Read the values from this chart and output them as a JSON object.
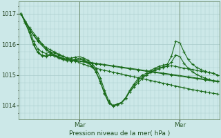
{
  "background_color": "#cce8e8",
  "grid_color": "#aacccc",
  "line_color": "#1a6b1a",
  "marker_color": "#1a6b1a",
  "xlabel_text": "Pression niveau de la mer( hPa )",
  "yticks": [
    1014,
    1015,
    1016,
    1017
  ],
  "ylim": [
    1013.55,
    1017.4
  ],
  "xlim": [
    -0.5,
    47.5
  ],
  "mar_x": 14,
  "mer_x": 38,
  "series": [
    {
      "x": [
        0,
        1,
        2,
        3,
        4,
        5,
        6,
        7,
        8,
        9,
        10,
        11,
        12,
        13,
        14,
        15,
        16,
        17,
        18,
        19,
        20,
        21,
        22,
        23,
        24,
        25,
        26,
        27,
        28,
        29,
        30,
        31,
        32,
        33,
        34,
        35,
        36,
        37,
        38,
        39,
        40,
        41,
        42,
        43,
        44,
        45,
        46,
        47
      ],
      "y": [
        1017.0,
        1016.75,
        1016.5,
        1016.3,
        1016.15,
        1016.0,
        1015.9,
        1015.82,
        1015.75,
        1015.68,
        1015.62,
        1015.56,
        1015.5,
        1015.45,
        1015.4,
        1015.35,
        1015.3,
        1015.26,
        1015.22,
        1015.18,
        1015.15,
        1015.12,
        1015.09,
        1015.06,
        1015.03,
        1015.0,
        1014.97,
        1014.94,
        1014.91,
        1014.88,
        1014.85,
        1014.82,
        1014.79,
        1014.76,
        1014.73,
        1014.7,
        1014.67,
        1014.64,
        1014.61,
        1014.58,
        1014.55,
        1014.52,
        1014.5,
        1014.47,
        1014.45,
        1014.42,
        1014.4,
        1014.38
      ]
    },
    {
      "x": [
        0,
        2,
        4,
        6,
        7,
        8,
        9,
        10,
        11,
        12,
        13,
        14,
        15,
        16,
        17,
        18,
        19,
        20,
        22,
        24,
        26,
        28,
        30,
        32,
        34,
        36,
        38,
        40,
        42,
        44,
        46,
        47
      ],
      "y": [
        1017.0,
        1016.55,
        1016.2,
        1015.85,
        1015.75,
        1015.65,
        1015.6,
        1015.55,
        1015.52,
        1015.5,
        1015.48,
        1015.46,
        1015.44,
        1015.42,
        1015.4,
        1015.38,
        1015.36,
        1015.34,
        1015.3,
        1015.26,
        1015.22,
        1015.18,
        1015.14,
        1015.1,
        1015.06,
        1015.02,
        1014.98,
        1014.94,
        1014.9,
        1014.86,
        1014.82,
        1014.8
      ]
    },
    {
      "x": [
        0,
        2,
        4,
        6,
        7,
        8,
        9,
        10,
        11,
        12,
        13,
        14,
        16,
        18,
        20,
        22,
        24,
        26,
        28,
        30,
        32,
        34,
        36,
        38,
        40,
        42,
        44,
        46,
        47
      ],
      "y": [
        1017.0,
        1016.5,
        1016.1,
        1015.82,
        1015.72,
        1015.62,
        1015.57,
        1015.52,
        1015.5,
        1015.48,
        1015.46,
        1015.44,
        1015.4,
        1015.36,
        1015.32,
        1015.28,
        1015.24,
        1015.2,
        1015.16,
        1015.12,
        1015.08,
        1015.04,
        1015.0,
        1014.96,
        1014.92,
        1014.88,
        1014.84,
        1014.8,
        1014.78
      ]
    },
    {
      "x": [
        0,
        1,
        2,
        3,
        4,
        5,
        6,
        7,
        8,
        9,
        10,
        11,
        12,
        13,
        14,
        15,
        16,
        17,
        18,
        19,
        20,
        21,
        22,
        23,
        24,
        25,
        26,
        27,
        28,
        29,
        30,
        31,
        32,
        33,
        34,
        35,
        36,
        37,
        38,
        39,
        40,
        41,
        42,
        43,
        44,
        45,
        46,
        47
      ],
      "y": [
        1017.0,
        1016.75,
        1016.5,
        1016.1,
        1015.85,
        1015.75,
        1015.7,
        1015.75,
        1015.72,
        1015.65,
        1015.6,
        1015.56,
        1015.55,
        1015.58,
        1015.6,
        1015.55,
        1015.48,
        1015.38,
        1015.2,
        1014.9,
        1014.5,
        1014.15,
        1014.0,
        1014.05,
        1014.1,
        1014.25,
        1014.45,
        1014.6,
        1014.75,
        1014.88,
        1015.0,
        1015.08,
        1015.15,
        1015.2,
        1015.25,
        1015.28,
        1015.3,
        1015.28,
        1015.25,
        1015.22,
        1015.2,
        1015.18,
        1015.15,
        1015.12,
        1015.1,
        1015.08,
        1015.05,
        1015.0
      ]
    },
    {
      "x": [
        0,
        1,
        2,
        3,
        4,
        5,
        6,
        7,
        8,
        9,
        10,
        11,
        12,
        13,
        14,
        15,
        16,
        17,
        18,
        19,
        20,
        21,
        22,
        23,
        24,
        25,
        26,
        27,
        28,
        29,
        30,
        31,
        32,
        33,
        34,
        35,
        36,
        37,
        38,
        39,
        40,
        41,
        42,
        43,
        44,
        45,
        46,
        47
      ],
      "y": [
        1017.0,
        1016.7,
        1016.4,
        1016.0,
        1015.75,
        1015.65,
        1015.62,
        1015.68,
        1015.65,
        1015.58,
        1015.52,
        1015.5,
        1015.48,
        1015.52,
        1015.55,
        1015.5,
        1015.42,
        1015.3,
        1015.1,
        1014.78,
        1014.4,
        1014.1,
        1014.0,
        1014.05,
        1014.1,
        1014.25,
        1014.5,
        1014.7,
        1014.88,
        1015.0,
        1015.05,
        1015.15,
        1015.22,
        1015.28,
        1015.32,
        1015.35,
        1015.62,
        1016.1,
        1016.05,
        1015.75,
        1015.5,
        1015.35,
        1015.25,
        1015.18,
        1015.12,
        1015.08,
        1015.05,
        1015.0
      ]
    },
    {
      "x": [
        0,
        1,
        2,
        3,
        4,
        5,
        6,
        7,
        8,
        9,
        10,
        11,
        12,
        13,
        14,
        15,
        16,
        17,
        18,
        19,
        20,
        21,
        22,
        23,
        24,
        25,
        26,
        27,
        28,
        29,
        30,
        31,
        32,
        33,
        34,
        35,
        36,
        37,
        38,
        39,
        40,
        41,
        42,
        43,
        44,
        45,
        46,
        47
      ],
      "y": [
        1017.0,
        1016.7,
        1016.38,
        1015.98,
        1015.73,
        1015.62,
        1015.6,
        1015.65,
        1015.62,
        1015.55,
        1015.5,
        1015.47,
        1015.45,
        1015.48,
        1015.52,
        1015.47,
        1015.4,
        1015.28,
        1015.08,
        1014.75,
        1014.38,
        1014.08,
        1013.98,
        1014.02,
        1014.08,
        1014.22,
        1014.45,
        1014.65,
        1014.82,
        1014.95,
        1015.0,
        1015.1,
        1015.18,
        1015.23,
        1015.27,
        1015.3,
        1015.42,
        1015.65,
        1015.6,
        1015.38,
        1015.22,
        1015.1,
        1015.02,
        1014.95,
        1014.9,
        1014.85,
        1014.8,
        1014.78
      ]
    }
  ]
}
